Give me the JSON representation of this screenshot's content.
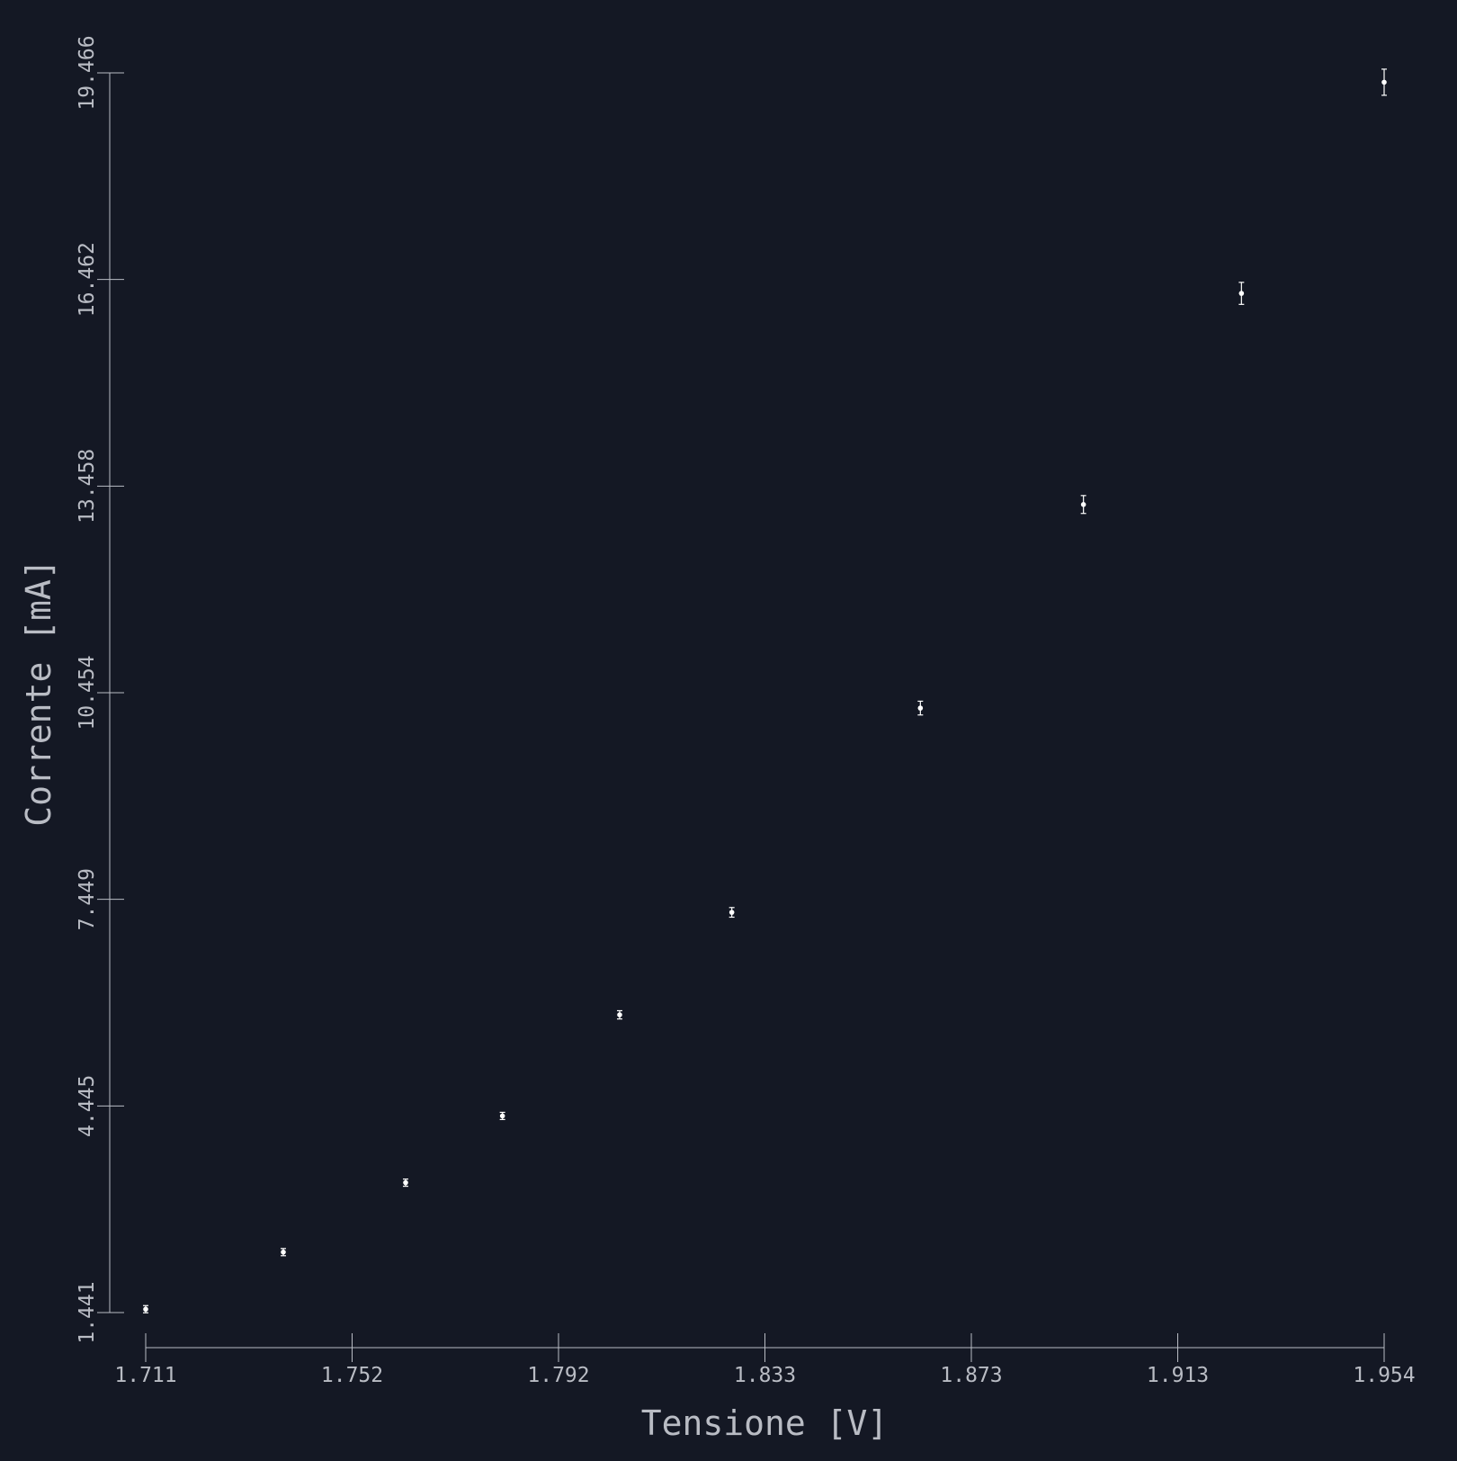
{
  "chart_data": {
    "type": "scatter",
    "title": "",
    "xlabel": "Tensione [V]",
    "ylabel": "Corrente [mA]",
    "xlim": [
      1.711,
      1.954
    ],
    "ylim": [
      1.441,
      19.466
    ],
    "x_ticks": [
      "1.711",
      "1.752",
      "1.792",
      "1.833",
      "1.873",
      "1.913",
      "1.954"
    ],
    "y_ticks": [
      "1.441",
      "4.445",
      "7.449",
      "10.454",
      "13.458",
      "16.462",
      "19.466"
    ],
    "grid": false,
    "legend": "none",
    "series": [
      {
        "points": [
          {
            "x": 1.711,
            "y": 1.49,
            "yerr": 0.02
          },
          {
            "x": 1.738,
            "y": 2.32,
            "yerr": 0.03
          },
          {
            "x": 1.762,
            "y": 3.33,
            "yerr": 0.04
          },
          {
            "x": 1.781,
            "y": 4.3,
            "yerr": 0.05
          },
          {
            "x": 1.804,
            "y": 5.77,
            "yerr": 0.06
          },
          {
            "x": 1.826,
            "y": 7.26,
            "yerr": 0.07
          },
          {
            "x": 1.863,
            "y": 10.23,
            "yerr": 0.1
          },
          {
            "x": 1.895,
            "y": 13.19,
            "yerr": 0.13
          },
          {
            "x": 1.926,
            "y": 16.26,
            "yerr": 0.16
          },
          {
            "x": 1.954,
            "y": 19.33,
            "yerr": 0.19
          }
        ]
      }
    ],
    "colors": {
      "background": "#141824",
      "axis": "#b9bcc4",
      "marker": "#ffffff"
    }
  }
}
